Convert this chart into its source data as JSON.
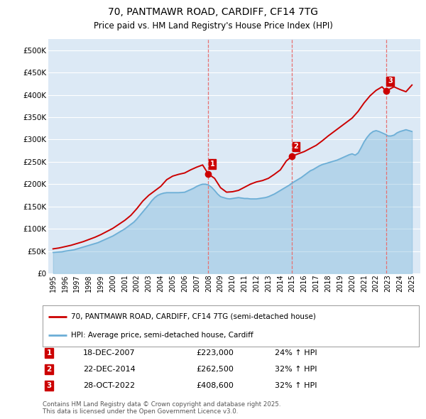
{
  "title_line1": "70, PANTMAWR ROAD, CARDIFF, CF14 7TG",
  "title_line2": "Price paid vs. HM Land Registry's House Price Index (HPI)",
  "background_color": "#ffffff",
  "plot_bg_color": "#dce9f5",
  "grid_color": "#ffffff",
  "red_line_color": "#cc0000",
  "blue_line_color": "#6baed6",
  "vline_color": "#e87070",
  "ytick_labels": [
    "£0",
    "£50K",
    "£100K",
    "£150K",
    "£200K",
    "£250K",
    "£300K",
    "£350K",
    "£400K",
    "£450K",
    "£500K"
  ],
  "ytick_values": [
    0,
    50000,
    100000,
    150000,
    200000,
    250000,
    300000,
    350000,
    400000,
    450000,
    500000
  ],
  "ylim": [
    0,
    525000
  ],
  "xlim_start": 1994.6,
  "xlim_end": 2025.7,
  "xtick_years": [
    1995,
    1996,
    1997,
    1998,
    1999,
    2000,
    2001,
    2002,
    2003,
    2004,
    2005,
    2006,
    2007,
    2008,
    2009,
    2010,
    2011,
    2012,
    2013,
    2014,
    2015,
    2016,
    2017,
    2018,
    2019,
    2020,
    2021,
    2022,
    2023,
    2024,
    2025
  ],
  "sale_events": [
    {
      "num": 1,
      "year": 2007.97,
      "price": 223000,
      "date": "18-DEC-2007",
      "hpi_pct": "24%",
      "direction": "↑"
    },
    {
      "num": 2,
      "year": 2014.97,
      "price": 262500,
      "date": "22-DEC-2014",
      "hpi_pct": "32%",
      "direction": "↑"
    },
    {
      "num": 3,
      "year": 2022.83,
      "price": 408600,
      "date": "28-OCT-2022",
      "hpi_pct": "32%",
      "direction": "↑"
    }
  ],
  "legend_label_red": "70, PANTMAWR ROAD, CARDIFF, CF14 7TG (semi-detached house)",
  "legend_label_blue": "HPI: Average price, semi-detached house, Cardiff",
  "footnote": "Contains HM Land Registry data © Crown copyright and database right 2025.\nThis data is licensed under the Open Government Licence v3.0.",
  "hpi_data_x": [
    1995.0,
    1995.25,
    1995.5,
    1995.75,
    1996.0,
    1996.25,
    1996.5,
    1996.75,
    1997.0,
    1997.25,
    1997.5,
    1997.75,
    1998.0,
    1998.25,
    1998.5,
    1998.75,
    1999.0,
    1999.25,
    1999.5,
    1999.75,
    2000.0,
    2000.25,
    2000.5,
    2000.75,
    2001.0,
    2001.25,
    2001.5,
    2001.75,
    2002.0,
    2002.25,
    2002.5,
    2002.75,
    2003.0,
    2003.25,
    2003.5,
    2003.75,
    2004.0,
    2004.25,
    2004.5,
    2004.75,
    2005.0,
    2005.25,
    2005.5,
    2005.75,
    2006.0,
    2006.25,
    2006.5,
    2006.75,
    2007.0,
    2007.25,
    2007.5,
    2007.75,
    2008.0,
    2008.25,
    2008.5,
    2008.75,
    2009.0,
    2009.25,
    2009.5,
    2009.75,
    2010.0,
    2010.25,
    2010.5,
    2010.75,
    2011.0,
    2011.25,
    2011.5,
    2011.75,
    2012.0,
    2012.25,
    2012.5,
    2012.75,
    2013.0,
    2013.25,
    2013.5,
    2013.75,
    2014.0,
    2014.25,
    2014.5,
    2014.75,
    2015.0,
    2015.25,
    2015.5,
    2015.75,
    2016.0,
    2016.25,
    2016.5,
    2016.75,
    2017.0,
    2017.25,
    2017.5,
    2017.75,
    2018.0,
    2018.25,
    2018.5,
    2018.75,
    2019.0,
    2019.25,
    2019.5,
    2019.75,
    2020.0,
    2020.25,
    2020.5,
    2020.75,
    2021.0,
    2021.25,
    2021.5,
    2021.75,
    2022.0,
    2022.25,
    2022.5,
    2022.75,
    2023.0,
    2023.25,
    2023.5,
    2023.75,
    2024.0,
    2024.25,
    2024.5,
    2025.0
  ],
  "hpi_data_y": [
    47000,
    47500,
    48000,
    48500,
    50000,
    51000,
    52000,
    53000,
    55000,
    57000,
    59000,
    61000,
    63000,
    65000,
    67000,
    69000,
    72000,
    75000,
    78000,
    81000,
    84000,
    88000,
    92000,
    96000,
    100000,
    105000,
    110000,
    115000,
    122000,
    130000,
    138000,
    146000,
    154000,
    163000,
    170000,
    175000,
    178000,
    180000,
    181000,
    181000,
    181000,
    181000,
    181000,
    181500,
    182000,
    185000,
    188000,
    191000,
    195000,
    198000,
    200000,
    200000,
    198000,
    193000,
    186000,
    178000,
    172000,
    170000,
    168000,
    167000,
    168000,
    169000,
    170000,
    169000,
    168000,
    168000,
    167000,
    167000,
    167000,
    168000,
    169000,
    170000,
    172000,
    175000,
    178000,
    182000,
    186000,
    190000,
    194000,
    198000,
    203000,
    207000,
    211000,
    215000,
    220000,
    225000,
    230000,
    233000,
    237000,
    241000,
    244000,
    246000,
    248000,
    250000,
    252000,
    254000,
    257000,
    260000,
    263000,
    266000,
    268000,
    265000,
    270000,
    282000,
    295000,
    305000,
    313000,
    318000,
    320000,
    318000,
    315000,
    312000,
    308000,
    308000,
    310000,
    315000,
    318000,
    320000,
    322000,
    318000
  ],
  "price_data_x": [
    1995.0,
    1995.5,
    1996.0,
    1996.5,
    1997.0,
    1997.5,
    1998.0,
    1998.5,
    1999.0,
    1999.5,
    2000.0,
    2000.5,
    2001.0,
    2001.5,
    2002.0,
    2002.5,
    2003.0,
    2003.5,
    2004.0,
    2004.5,
    2005.0,
    2005.5,
    2006.0,
    2006.5,
    2007.0,
    2007.5,
    2007.97,
    2008.5,
    2009.0,
    2009.5,
    2010.0,
    2010.5,
    2011.0,
    2011.5,
    2012.0,
    2012.5,
    2013.0,
    2013.5,
    2014.0,
    2014.5,
    2014.97,
    2015.5,
    2016.0,
    2016.5,
    2017.0,
    2017.5,
    2018.0,
    2018.5,
    2019.0,
    2019.5,
    2020.0,
    2020.5,
    2021.0,
    2021.5,
    2022.0,
    2022.5,
    2022.83,
    2023.5,
    2024.0,
    2024.5,
    2025.0
  ],
  "price_data_y": [
    55000,
    57000,
    60000,
    63000,
    67000,
    71000,
    76000,
    81000,
    87000,
    94000,
    101000,
    110000,
    119000,
    130000,
    145000,
    162000,
    175000,
    185000,
    195000,
    210000,
    218000,
    222000,
    225000,
    232000,
    238000,
    243000,
    223000,
    213000,
    192000,
    182000,
    183000,
    186000,
    193000,
    200000,
    205000,
    208000,
    213000,
    222000,
    232000,
    252000,
    262500,
    268000,
    273000,
    280000,
    287000,
    297000,
    308000,
    318000,
    328000,
    338000,
    348000,
    363000,
    382000,
    398000,
    410000,
    418000,
    408600,
    418000,
    412000,
    407000,
    422000
  ]
}
